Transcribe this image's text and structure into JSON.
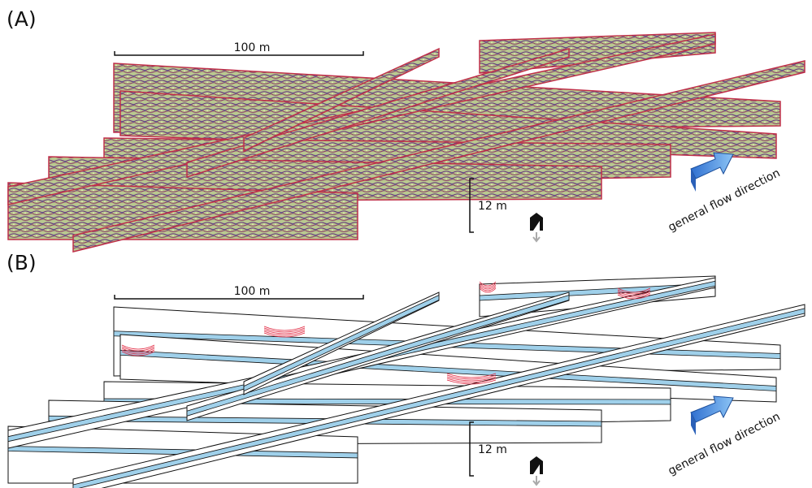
{
  "panels": [
    {
      "label": "(A)",
      "scale_bar": "100 m",
      "depth_bar": "12 m",
      "flow_label": "general flow direction"
    },
    {
      "label": "(B)",
      "scale_bar": "100 m",
      "depth_bar": "12 m",
      "flow_label": "general flow direction"
    }
  ]
}
